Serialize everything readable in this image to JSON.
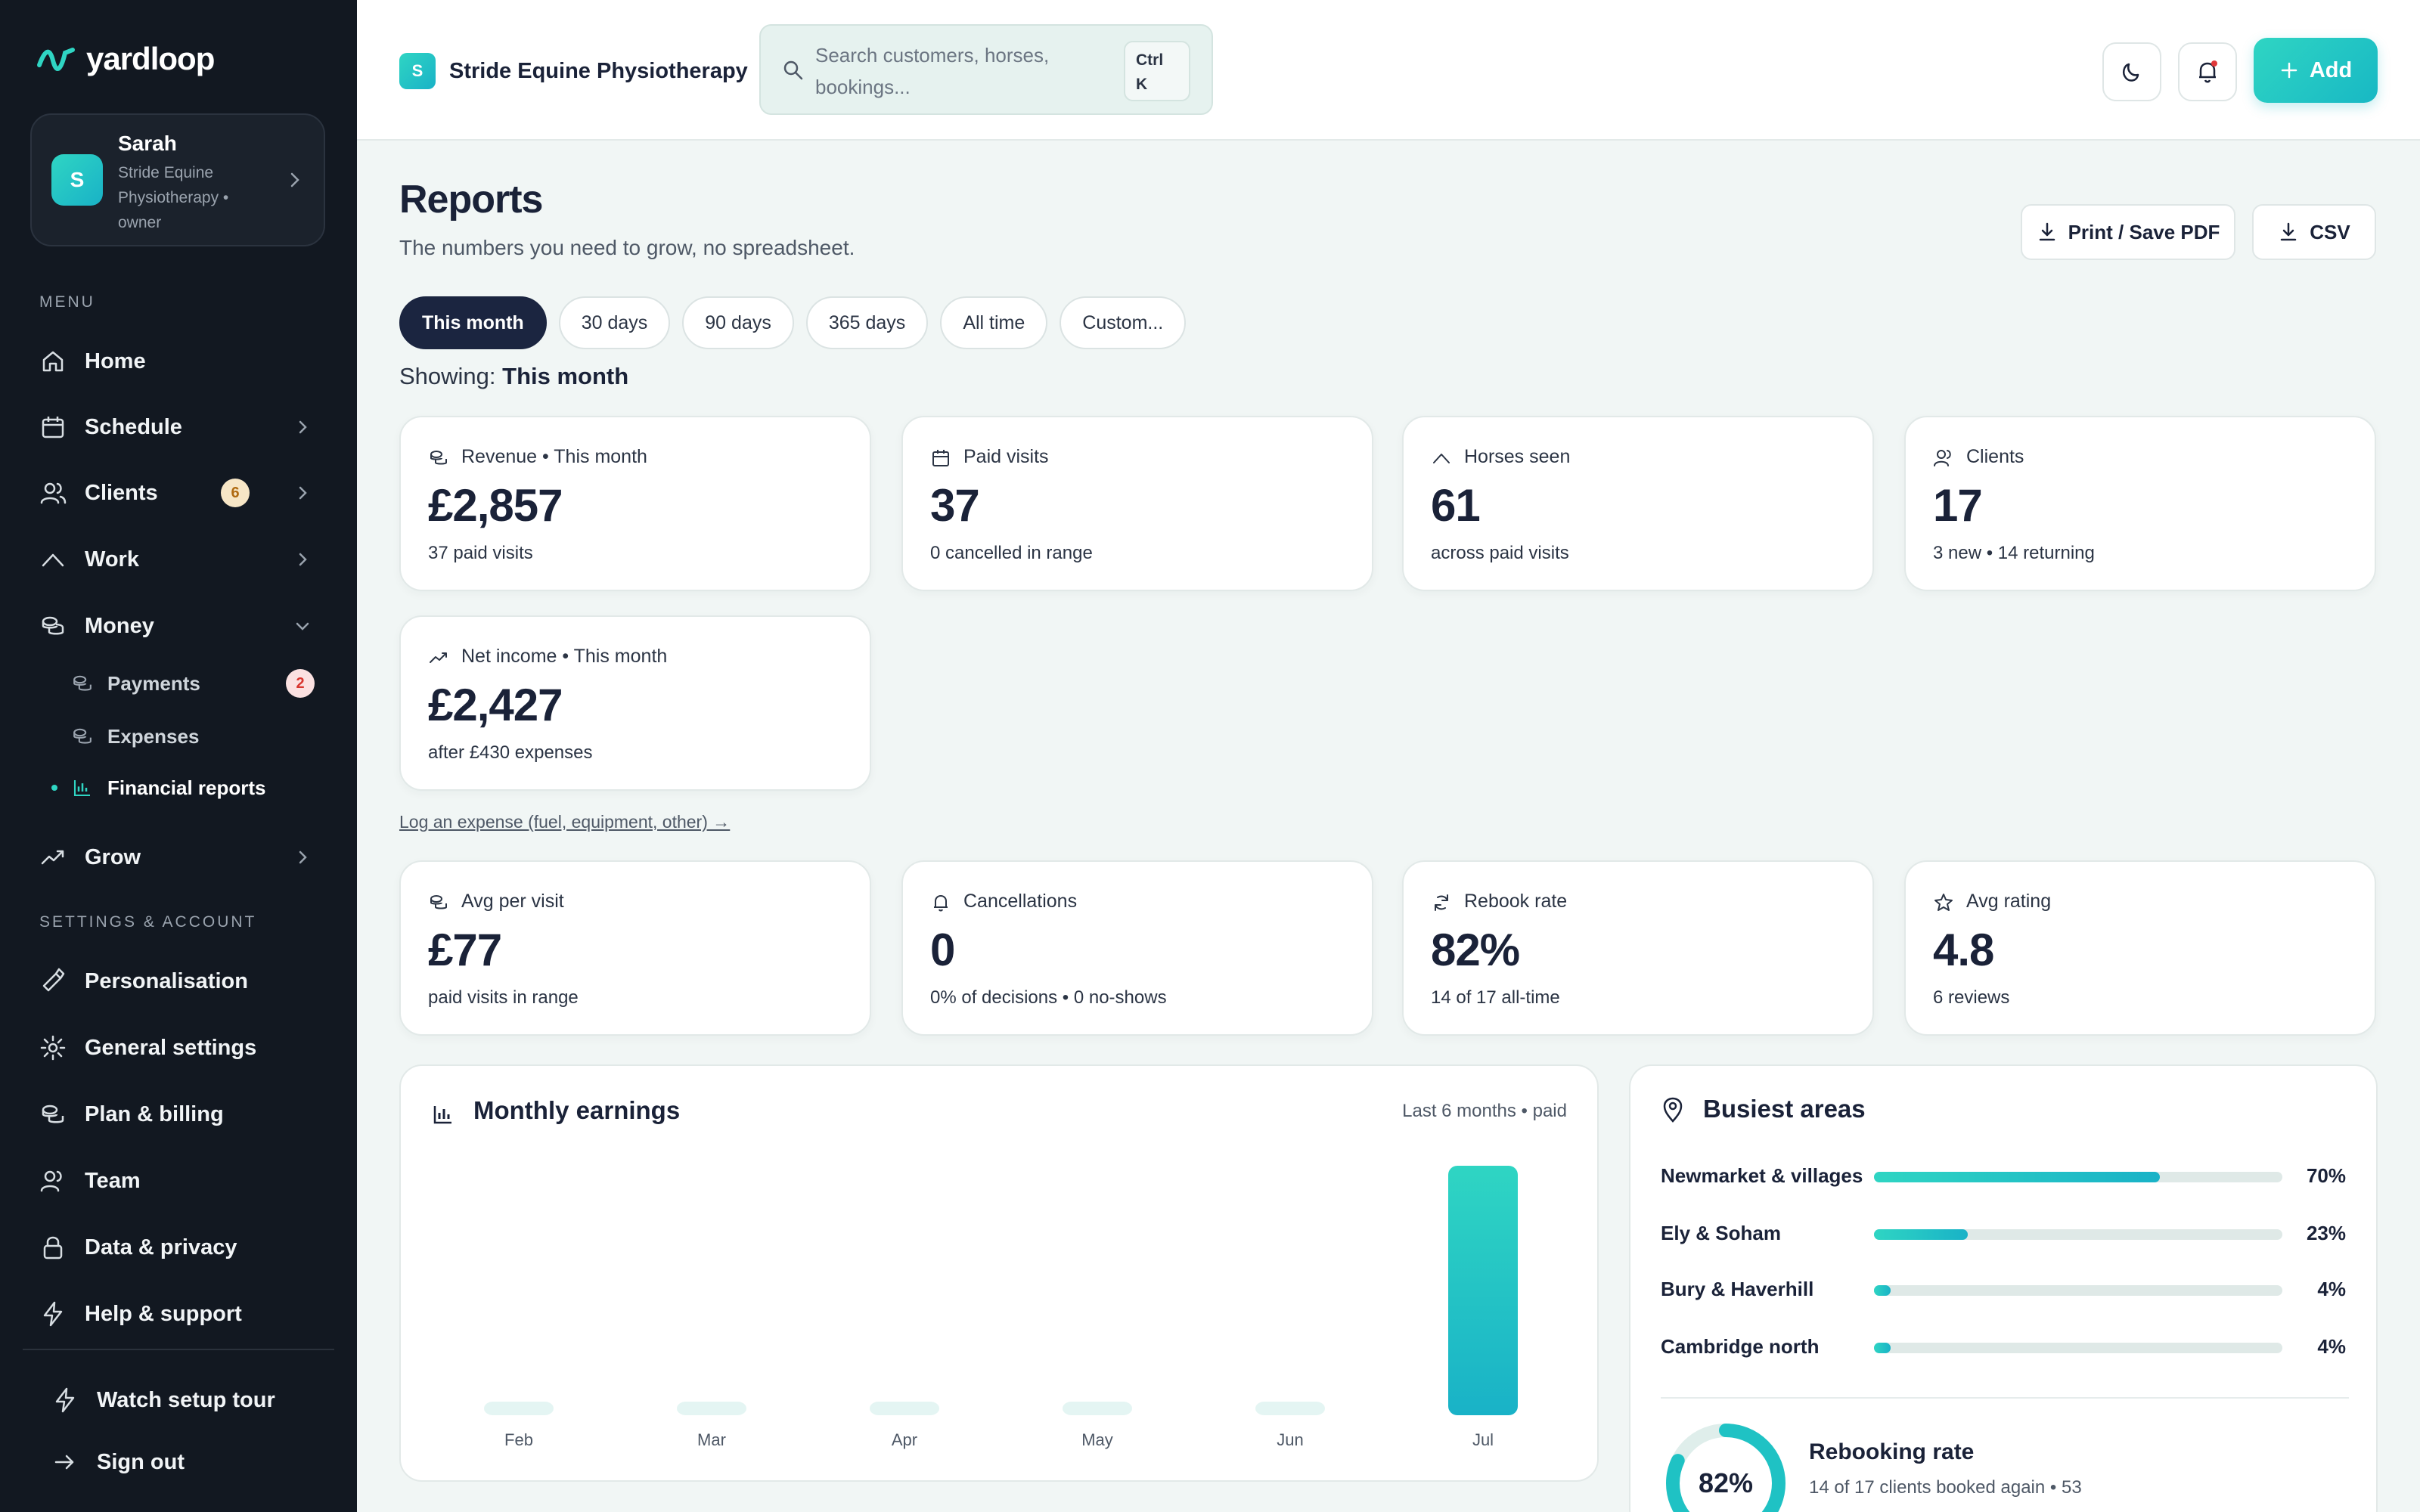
{
  "brand": {
    "name": "yardloop"
  },
  "account": {
    "name": "Sarah",
    "avatar": "S",
    "subtitle": "Stride Equine Physiotherapy • owner"
  },
  "sidebar": {
    "menu_label": "MENU",
    "items": [
      {
        "label": "Home",
        "icon": "home-icon"
      },
      {
        "label": "Schedule",
        "icon": "calendar-icon"
      },
      {
        "label": "Clients",
        "icon": "users-icon",
        "badge": "6"
      },
      {
        "label": "Work",
        "icon": "work-icon"
      },
      {
        "label": "Money",
        "icon": "coins-icon"
      }
    ],
    "money_sub": [
      {
        "label": "Payments",
        "badge": "2"
      },
      {
        "label": "Expenses"
      },
      {
        "label": "Financial reports",
        "active": true
      }
    ],
    "grow": {
      "label": "Grow"
    },
    "settings_label": "SETTINGS & ACCOUNT",
    "settings": [
      {
        "label": "Personalisation",
        "icon": "brush-icon"
      },
      {
        "label": "General settings",
        "icon": "gear-icon"
      },
      {
        "label": "Plan & billing",
        "icon": "coins-icon"
      },
      {
        "label": "Team",
        "icon": "users-icon"
      },
      {
        "label": "Data & privacy",
        "icon": "lock-icon"
      },
      {
        "label": "Help & support",
        "icon": "bolt-icon"
      }
    ],
    "footer": [
      {
        "label": "Watch setup tour",
        "icon": "bolt-icon"
      },
      {
        "label": "Sign out",
        "icon": "arrow-right-icon"
      }
    ]
  },
  "topbar": {
    "org_avatar": "S",
    "org_name": "Stride Equine Physiotherapy",
    "search_placeholder": "Search customers, horses, bookings...",
    "shortcut_line1": "Ctrl",
    "shortcut_line2": "K",
    "add_label": "Add"
  },
  "page": {
    "title": "Reports",
    "subtitle": "The numbers you need to grow, no spreadsheet.",
    "print_label": "Print / Save PDF",
    "csv_label": "CSV",
    "ranges": [
      "This month",
      "30 days",
      "90 days",
      "365 days",
      "All time",
      "Custom..."
    ],
    "active_range": "This month",
    "showing_prefix": "Showing:",
    "showing_value": "This month",
    "expense_link": "Log an expense (fuel, equipment, other) →"
  },
  "stats_top": [
    {
      "title": "Revenue • This month",
      "value": "£2,857",
      "sub": "37 paid visits",
      "icon": "coins-icon"
    },
    {
      "title": "Paid visits",
      "value": "37",
      "sub": "0 cancelled in range",
      "icon": "calendar-icon"
    },
    {
      "title": "Horses seen",
      "value": "61",
      "sub": "across paid visits",
      "icon": "work-icon"
    },
    {
      "title": "Clients",
      "value": "17",
      "sub": "3 new • 14 returning",
      "icon": "users-icon"
    }
  ],
  "net_income": {
    "title": "Net income • This month",
    "value": "£2,427",
    "sub": "after £430 expenses",
    "icon": "trend-icon"
  },
  "stats_bottom": [
    {
      "title": "Avg per visit",
      "value": "£77",
      "sub": "paid visits in range",
      "icon": "coins-icon"
    },
    {
      "title": "Cancellations",
      "value": "0",
      "sub": "0% of decisions • 0 no-shows",
      "icon": "bell-icon"
    },
    {
      "title": "Rebook rate",
      "value": "82%",
      "sub": "14 of 17 all-time",
      "icon": "refresh-icon"
    },
    {
      "title": "Avg rating",
      "value": "4.8",
      "sub": "6 reviews",
      "icon": "star-icon"
    }
  ],
  "earnings": {
    "title": "Monthly earnings",
    "note": "Last 6 months • paid"
  },
  "chart_data": {
    "type": "bar",
    "categories": [
      "Feb",
      "Mar",
      "Apr",
      "May",
      "Jun",
      "Jul"
    ],
    "values": [
      60,
      80,
      80,
      110,
      110,
      2857
    ],
    "ylim": [
      0,
      2857
    ],
    "grid": false,
    "xlabel": "",
    "ylabel": "",
    "colors": {
      "highlight": "#19b2c7",
      "muted": "#e4f5f3"
    }
  },
  "areas": {
    "title": "Busiest areas",
    "items": [
      {
        "name": "Newmarket & villages",
        "pct_value": 70,
        "pct": "70%"
      },
      {
        "name": "Ely & Soham",
        "pct_value": 23,
        "pct": "23%"
      },
      {
        "name": "Bury & Haverhill",
        "pct_value": 4,
        "pct": "4%"
      },
      {
        "name": "Cambridge north",
        "pct_value": 4,
        "pct": "4%"
      }
    ]
  },
  "rebooking": {
    "value": "82%",
    "pct_value": 82,
    "title": "Rebooking rate",
    "text": "14 of 17 clients booked again • 53"
  },
  "colors": {
    "accent": "#2fd5c3",
    "accent2": "#19b2c7",
    "sidebar": "#121821",
    "navy": "#1b2540"
  }
}
